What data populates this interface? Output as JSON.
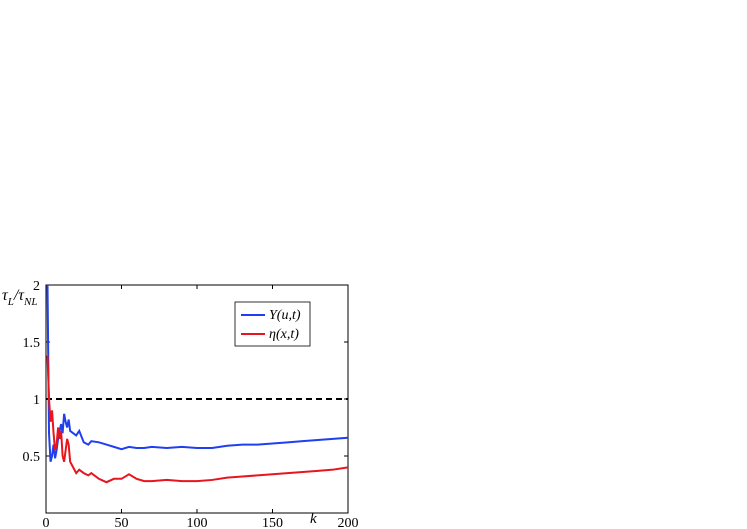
{
  "chart_data": {
    "type": "line",
    "ylabel": [
      "τ",
      "L",
      "/τ",
      "NL"
    ],
    "xlabel": "k",
    "x": [
      1,
      2,
      3,
      4,
      5,
      6,
      7,
      8,
      9,
      10,
      11,
      12,
      13,
      14,
      15,
      16,
      18,
      20,
      22,
      25,
      28,
      30,
      35,
      40,
      45,
      50,
      55,
      60,
      65,
      70,
      80,
      90,
      100,
      110,
      120,
      130,
      140,
      150,
      160,
      170,
      180,
      190,
      200
    ],
    "series": [
      {
        "name": "Y(u,t)",
        "color": "#1f3ff0",
        "values": [
          2.0,
          0.7,
          0.45,
          0.5,
          0.6,
          0.48,
          0.55,
          0.65,
          0.72,
          0.78,
          0.7,
          0.87,
          0.8,
          0.75,
          0.82,
          0.72,
          0.7,
          0.68,
          0.72,
          0.62,
          0.6,
          0.63,
          0.62,
          0.6,
          0.58,
          0.56,
          0.58,
          0.57,
          0.57,
          0.58,
          0.57,
          0.58,
          0.57,
          0.57,
          0.59,
          0.6,
          0.6,
          0.61,
          0.62,
          0.63,
          0.64,
          0.65,
          0.66
        ]
      },
      {
        "name": "η(x,t)",
        "color": "#e8141e",
        "values": [
          1.38,
          1.0,
          0.8,
          0.9,
          0.7,
          0.55,
          0.6,
          0.75,
          0.65,
          0.72,
          0.5,
          0.45,
          0.55,
          0.65,
          0.6,
          0.45,
          0.4,
          0.35,
          0.38,
          0.35,
          0.33,
          0.35,
          0.3,
          0.27,
          0.3,
          0.3,
          0.34,
          0.3,
          0.28,
          0.28,
          0.29,
          0.28,
          0.28,
          0.29,
          0.31,
          0.32,
          0.33,
          0.34,
          0.35,
          0.36,
          0.37,
          0.38,
          0.4
        ]
      }
    ],
    "hline": 1,
    "xlim": [
      0,
      200
    ],
    "xticks": [
      0,
      50,
      100,
      150,
      200
    ],
    "ylim": [
      0,
      2
    ],
    "yticks": [
      0.5,
      1,
      1.5,
      2
    ],
    "legend": "upper right"
  }
}
